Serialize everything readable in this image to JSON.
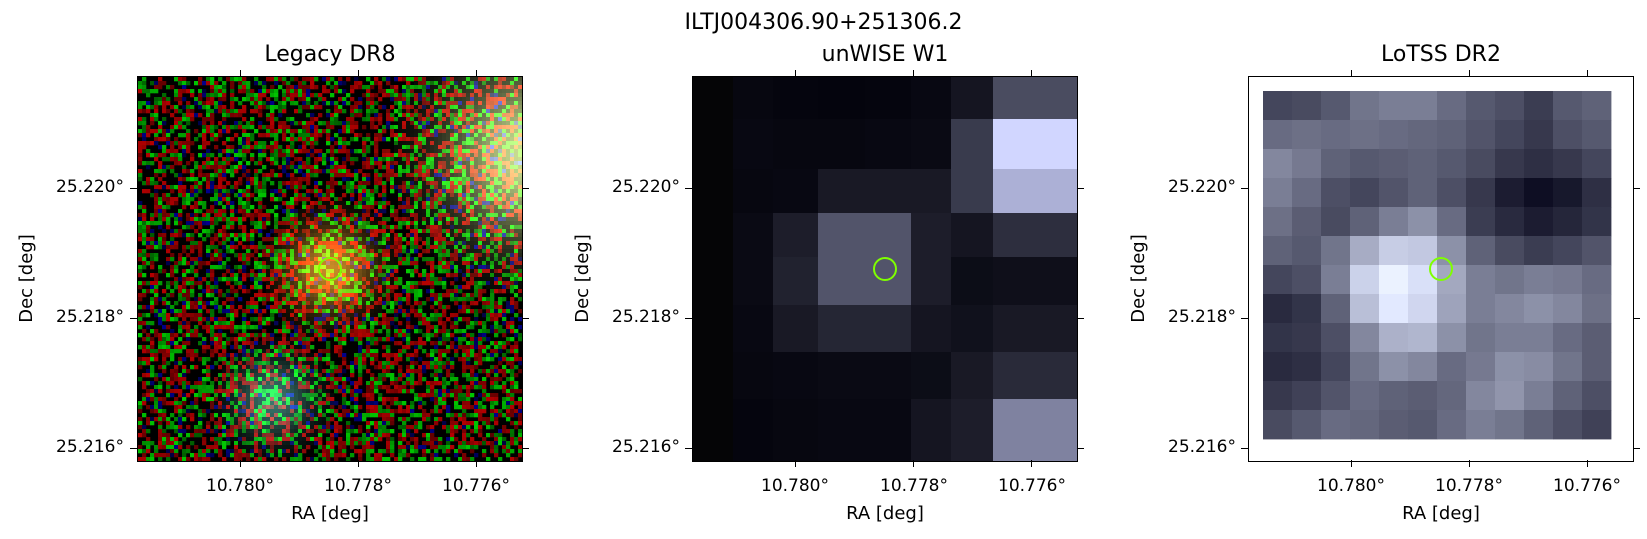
{
  "figure": {
    "suptitle": "ILTJ004306.90+251306.2"
  },
  "panels": [
    {
      "title": "Legacy DR8",
      "xlabel": "RA [deg]",
      "ylabel": "Dec [deg]",
      "image": "optical-color-cutout"
    },
    {
      "title": "unWISE W1",
      "xlabel": "RA [deg]",
      "ylabel": "Dec [deg]",
      "image": "infrared-grayscale-cutout"
    },
    {
      "title": "LoTSS DR2",
      "xlabel": "RA [deg]",
      "ylabel": "Dec [deg]",
      "image": "radio-grayscale-cutout"
    }
  ],
  "axes": {
    "x_ticks": [
      "10.780°",
      "10.778°",
      "10.776°"
    ],
    "y_ticks": [
      "25.220°",
      "25.218°",
      "25.216°"
    ]
  },
  "marker": {
    "shape": "circle",
    "color": "#7fff00"
  }
}
